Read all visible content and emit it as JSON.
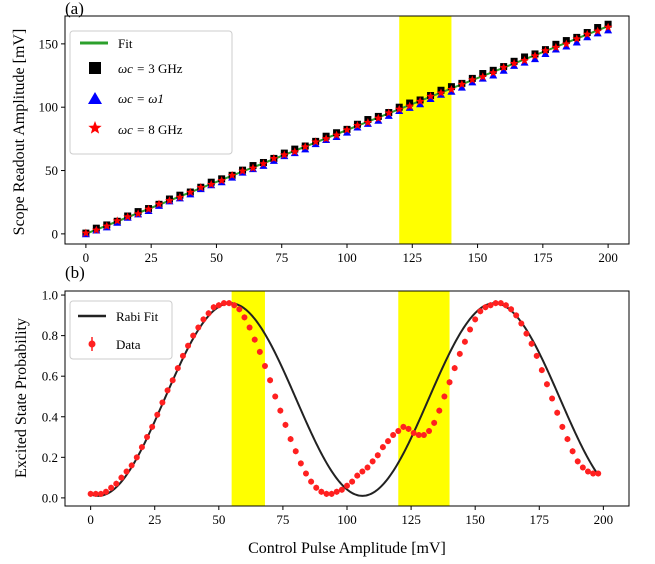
{
  "chart_data": [
    {
      "panel_label": "(a)",
      "type": "scatter",
      "xlabel": "",
      "ylabel": "Scope Readout Amplitude [mV]",
      "xlim": [
        -8,
        208
      ],
      "ylim": [
        -8,
        172
      ],
      "xticks": [
        0,
        25,
        50,
        75,
        100,
        125,
        150,
        175,
        200
      ],
      "xtick_labels": [
        "0",
        "25",
        "50",
        "75",
        "100",
        "125",
        "150",
        "175",
        "200"
      ],
      "yticks": [
        0,
        50,
        100,
        150
      ],
      "ytick_labels": [
        "0",
        "50",
        "100",
        "150"
      ],
      "grid": false,
      "legend_position": "top-left",
      "highlight_regions": [
        {
          "x0": 120,
          "x1": 140,
          "color": "#ffff00"
        }
      ],
      "fit": {
        "label": "Fit",
        "color": "#2ca02c",
        "x": [
          0,
          200
        ],
        "y": [
          0,
          164
        ]
      },
      "series": [
        {
          "name": "3 GHz",
          "label_prefix": "ωc = ",
          "marker": "square",
          "color": "#000000",
          "x_start": 0,
          "x_step": 4,
          "count": 51,
          "slope": 0.825,
          "offset": 0.6
        },
        {
          "name": "ω1",
          "label_prefix": "ωc = ",
          "marker": "triangle",
          "color": "#0000ff",
          "x_start": 0,
          "x_step": 4,
          "count": 51,
          "slope": 0.81,
          "offset": -0.8
        },
        {
          "name": "8 GHz",
          "label_prefix": "ωc = ",
          "marker": "star",
          "color": "#ff0000",
          "x_start": 0,
          "x_step": 4,
          "count": 51,
          "slope": 0.818,
          "offset": 0
        }
      ]
    },
    {
      "panel_label": "(b)",
      "type": "scatter",
      "xlabel": "Control Pulse Amplitude [mV]",
      "ylabel": "Excited State Probability",
      "xlim": [
        -10,
        210
      ],
      "ylim": [
        -0.04,
        1.02
      ],
      "xticks": [
        0,
        25,
        50,
        75,
        100,
        125,
        150,
        175,
        200
      ],
      "xtick_labels": [
        "0",
        "25",
        "50",
        "75",
        "100",
        "125",
        "150",
        "175",
        "200"
      ],
      "yticks": [
        0.0,
        0.2,
        0.4,
        0.6,
        0.8,
        1.0
      ],
      "ytick_labels": [
        "0.0",
        "0.2",
        "0.4",
        "0.6",
        "0.8",
        "1.0"
      ],
      "grid": false,
      "legend_position": "top-left",
      "highlight_regions": [
        {
          "x0": 55,
          "x1": 68,
          "color": "#ffff00"
        },
        {
          "x0": 120,
          "x1": 140,
          "color": "#ffff00"
        }
      ],
      "fit": {
        "label": "Rabi Fit",
        "color": "#222222",
        "period_mV": 103,
        "min": 0.01,
        "max": 0.96,
        "phase_mV": 3
      },
      "data": {
        "label": "Data",
        "color": "#ff2020",
        "x": [
          0,
          2,
          4,
          6,
          8,
          10,
          12,
          14,
          16,
          18,
          20,
          22,
          24,
          26,
          28,
          30,
          32,
          34,
          36,
          38,
          40,
          42,
          44,
          46,
          48,
          50,
          52,
          54,
          56,
          58,
          60,
          62,
          64,
          66,
          68,
          70,
          72,
          74,
          76,
          78,
          80,
          82,
          84,
          86,
          88,
          90,
          92,
          94,
          96,
          98,
          100,
          102,
          104,
          106,
          108,
          110,
          112,
          114,
          116,
          118,
          120,
          122,
          124,
          126,
          128,
          130,
          132,
          134,
          136,
          138,
          140,
          142,
          144,
          146,
          148,
          150,
          152,
          154,
          156,
          158,
          160,
          162,
          164,
          166,
          168,
          170,
          172,
          174,
          176,
          178,
          180,
          182,
          184,
          186,
          188,
          190,
          192,
          194,
          196,
          198
        ],
        "y": [
          0.02,
          0.02,
          0.02,
          0.03,
          0.05,
          0.07,
          0.1,
          0.13,
          0.16,
          0.2,
          0.25,
          0.3,
          0.35,
          0.41,
          0.47,
          0.53,
          0.58,
          0.64,
          0.7,
          0.75,
          0.8,
          0.84,
          0.88,
          0.91,
          0.94,
          0.95,
          0.96,
          0.96,
          0.95,
          0.93,
          0.89,
          0.84,
          0.78,
          0.72,
          0.65,
          0.58,
          0.5,
          0.43,
          0.36,
          0.29,
          0.23,
          0.17,
          0.12,
          0.08,
          0.05,
          0.03,
          0.02,
          0.02,
          0.03,
          0.04,
          0.06,
          0.08,
          0.11,
          0.13,
          0.15,
          0.18,
          0.21,
          0.25,
          0.28,
          0.31,
          0.33,
          0.35,
          0.34,
          0.32,
          0.31,
          0.31,
          0.33,
          0.37,
          0.43,
          0.5,
          0.57,
          0.64,
          0.71,
          0.77,
          0.83,
          0.88,
          0.92,
          0.94,
          0.95,
          0.96,
          0.96,
          0.95,
          0.93,
          0.9,
          0.86,
          0.81,
          0.76,
          0.7,
          0.63,
          0.56,
          0.49,
          0.42,
          0.35,
          0.29,
          0.23,
          0.18,
          0.15,
          0.13,
          0.12,
          0.12
        ]
      }
    }
  ]
}
